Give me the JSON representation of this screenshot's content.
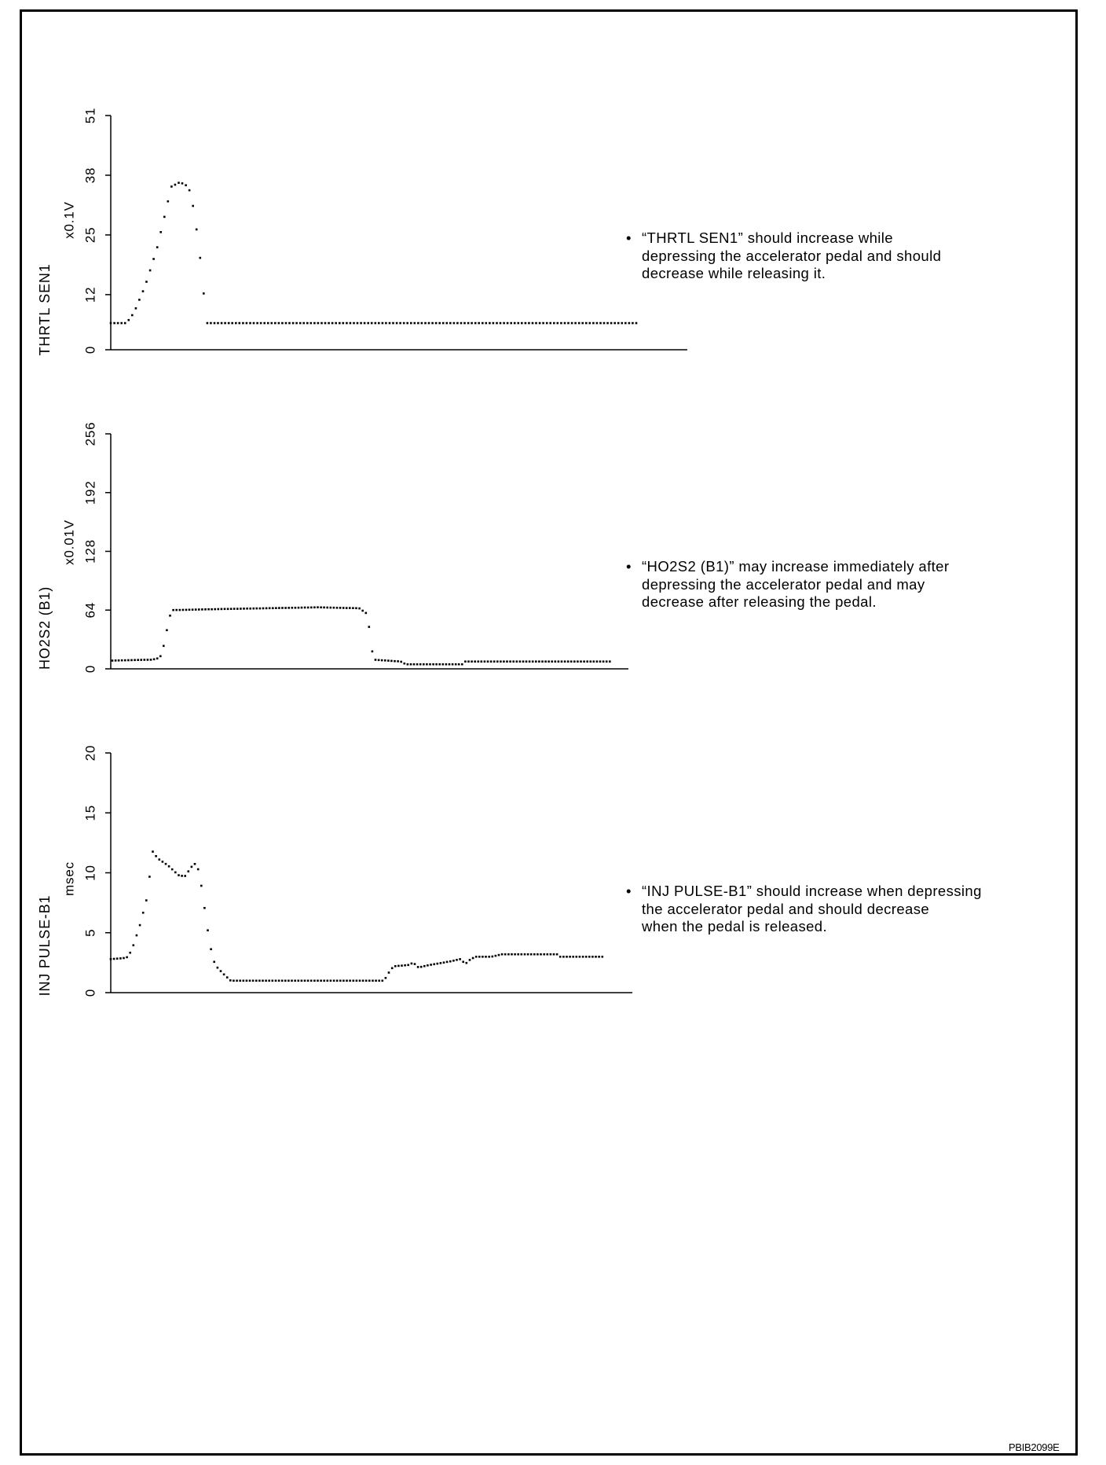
{
  "figure_id": "PBIB2099E",
  "notes": [
    {
      "bullet": "•",
      "lines": [
        "“THRTL SEN1” should increase while",
        "depressing the accelerator pedal and should",
        "decrease while releasing it."
      ]
    },
    {
      "bullet": "•",
      "lines": [
        "“HO2S2 (B1)” may increase immediately after",
        "depressing the accelerator pedal and may",
        "decrease after releasing the pedal."
      ]
    },
    {
      "bullet": "•",
      "lines": [
        "“INJ PULSE-B1” should increase when depressing",
        "the accelerator pedal and should decrease",
        "when the pedal is released."
      ]
    }
  ],
  "chart_data": [
    {
      "type": "scatter",
      "title": "",
      "ylabel": "THRTL SEN1",
      "unit": "x0.1V",
      "xlabel": "",
      "xlim": [
        0,
        100
      ],
      "ylim": [
        0,
        51
      ],
      "yticks": [
        0,
        12,
        25,
        38,
        51
      ],
      "grid": false,
      "points": [
        [
          0,
          5.8
        ],
        [
          2.7,
          5.8
        ],
        [
          4,
          8
        ],
        [
          6,
          14
        ],
        [
          8,
          22
        ],
        [
          9.5,
          30
        ],
        [
          10.5,
          35.5
        ],
        [
          12,
          36.5
        ],
        [
          13.5,
          35.5
        ],
        [
          14.5,
          30
        ],
        [
          15.5,
          20
        ],
        [
          16.3,
          10
        ],
        [
          16.6,
          5.8
        ],
        [
          91.6,
          5.8
        ]
      ]
    },
    {
      "type": "scatter",
      "title": "",
      "ylabel": "HO2S2 (B1)",
      "unit": "x0.01V",
      "xlabel": "",
      "xlim": [
        0,
        100
      ],
      "ylim": [
        0,
        256
      ],
      "yticks": [
        0,
        64,
        128,
        192,
        256
      ],
      "grid": false,
      "points": [
        [
          0.3,
          9
        ],
        [
          8,
          10
        ],
        [
          9.5,
          12
        ],
        [
          10.5,
          30
        ],
        [
          11.2,
          55
        ],
        [
          12,
          64
        ],
        [
          20,
          65
        ],
        [
          30,
          66
        ],
        [
          40,
          67
        ],
        [
          48,
          66
        ],
        [
          49.5,
          60
        ],
        [
          50.2,
          35
        ],
        [
          50.7,
          10
        ],
        [
          56,
          8
        ],
        [
          57,
          5
        ],
        [
          68,
          5
        ],
        [
          68.5,
          8
        ],
        [
          96.7,
          8
        ]
      ]
    },
    {
      "type": "scatter",
      "title": "",
      "ylabel": "INJ PULSE-B1",
      "unit": "msec",
      "xlabel": "",
      "xlim": [
        0,
        100
      ],
      "ylim": [
        0,
        20
      ],
      "yticks": [
        0,
        5,
        10,
        15,
        20
      ],
      "grid": false,
      "points": [
        [
          0,
          2.8
        ],
        [
          3,
          2.9
        ],
        [
          4,
          3.5
        ],
        [
          5.5,
          5.5
        ],
        [
          7,
          8
        ],
        [
          8,
          11.8
        ],
        [
          9,
          11.2
        ],
        [
          11,
          10.6
        ],
        [
          13,
          9.8
        ],
        [
          14.2,
          9.7
        ],
        [
          15.5,
          10.5
        ],
        [
          16.3,
          10.8
        ],
        [
          17,
          10
        ],
        [
          18,
          7
        ],
        [
          19,
          4
        ],
        [
          20,
          2.3
        ],
        [
          21.5,
          1.6
        ],
        [
          23,
          1.0
        ],
        [
          52.4,
          1.0
        ],
        [
          53.2,
          1.6
        ],
        [
          54.2,
          2.2
        ],
        [
          57,
          2.3
        ],
        [
          58,
          2.5
        ],
        [
          59,
          2.1
        ],
        [
          61,
          2.3
        ],
        [
          65,
          2.6
        ],
        [
          67,
          2.8
        ],
        [
          68,
          2.4
        ],
        [
          69,
          2.8
        ],
        [
          70,
          3.0
        ],
        [
          73,
          3.0
        ],
        [
          75,
          3.2
        ],
        [
          85.7,
          3.2
        ],
        [
          86,
          3.0
        ],
        [
          94.7,
          3.0
        ]
      ]
    }
  ]
}
